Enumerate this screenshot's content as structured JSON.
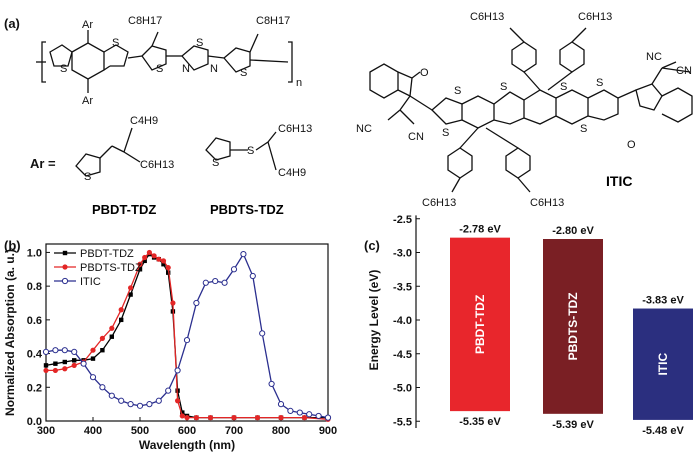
{
  "panels": {
    "a": "(a)",
    "b": "(b)",
    "c": "(c)"
  },
  "chemistry": {
    "polymer_labels": [
      "PBDT-TDZ",
      "PBDTS-TDZ"
    ],
    "acceptor_label": "ITIC",
    "substituents": {
      "ar_prefix": "Ar =",
      "ar": "Ar",
      "n": "n",
      "c8h17": "C8H17",
      "c6h13": "C6H13",
      "c4h9": "C4H9",
      "s": "S",
      "n_atom": "N",
      "o": "O",
      "nc": "NC",
      "cn": "CN"
    }
  },
  "chart_data": [
    {
      "type": "line",
      "xlabel": "Wavelength (nm)",
      "ylabel": "Normalized Absorption (a. u.)",
      "xlim": [
        300,
        900
      ],
      "ylim": [
        0.0,
        1.05
      ],
      "xticks": [
        300,
        400,
        500,
        600,
        700,
        800,
        900
      ],
      "yticks": [
        0.0,
        0.2,
        0.4,
        0.6,
        0.8,
        1.0
      ],
      "legend": "top-left",
      "series": [
        {
          "name": "PBDT-TDZ",
          "color": "#000000",
          "marker": "square",
          "x": [
            300,
            320,
            340,
            360,
            380,
            400,
            420,
            440,
            460,
            480,
            500,
            510,
            520,
            530,
            540,
            550,
            560,
            570,
            580,
            590,
            600,
            620,
            650,
            700,
            750,
            800,
            850,
            900
          ],
          "y": [
            0.33,
            0.34,
            0.35,
            0.36,
            0.36,
            0.37,
            0.42,
            0.5,
            0.6,
            0.75,
            0.9,
            0.95,
            0.99,
            0.97,
            0.96,
            0.93,
            0.88,
            0.65,
            0.18,
            0.05,
            0.03,
            0.02,
            0.02,
            0.02,
            0.02,
            0.02,
            0.02,
            0.02
          ]
        },
        {
          "name": "PBDTS-TDZ",
          "color": "#e32626",
          "marker": "circle",
          "x": [
            300,
            320,
            340,
            360,
            380,
            400,
            420,
            440,
            460,
            480,
            500,
            510,
            520,
            530,
            540,
            550,
            560,
            570,
            580,
            590,
            600,
            620,
            650,
            700,
            750,
            800,
            850,
            900
          ],
          "y": [
            0.3,
            0.3,
            0.31,
            0.33,
            0.35,
            0.42,
            0.49,
            0.55,
            0.66,
            0.79,
            0.93,
            0.97,
            1.0,
            0.98,
            0.96,
            0.95,
            0.91,
            0.7,
            0.12,
            0.03,
            0.02,
            0.02,
            0.02,
            0.02,
            0.02,
            0.02,
            0.02,
            0.01
          ]
        },
        {
          "name": "ITIC",
          "color": "#2b2f8f",
          "marker": "open-circle",
          "x": [
            300,
            320,
            340,
            360,
            380,
            400,
            420,
            440,
            460,
            480,
            500,
            520,
            540,
            560,
            580,
            600,
            620,
            640,
            660,
            680,
            700,
            720,
            740,
            760,
            780,
            800,
            820,
            840,
            860,
            880,
            900
          ],
          "y": [
            0.41,
            0.42,
            0.42,
            0.41,
            0.34,
            0.26,
            0.2,
            0.15,
            0.12,
            0.1,
            0.09,
            0.1,
            0.12,
            0.18,
            0.3,
            0.48,
            0.7,
            0.82,
            0.83,
            0.82,
            0.9,
            0.99,
            0.86,
            0.52,
            0.22,
            0.1,
            0.06,
            0.05,
            0.04,
            0.03,
            0.02
          ]
        }
      ]
    },
    {
      "type": "bar",
      "ylabel": "Energy Level (eV)",
      "ylim": [
        -5.6,
        -2.4
      ],
      "yticks": [
        -2.5,
        -3.0,
        -3.5,
        -4.0,
        -4.5,
        -5.0,
        -5.5
      ],
      "yticklabels": [
        "-2.5",
        "-3.0",
        "-3.5",
        "-4.0",
        "-4.5",
        "-5.0",
        "-5.5"
      ],
      "categories": [
        "PBDT-TDZ",
        "PBDTS-TDZ",
        "ITIC"
      ],
      "lumo": [
        -2.78,
        -2.8,
        -3.83
      ],
      "homo": [
        -5.35,
        -5.39,
        -5.48
      ],
      "lumo_labels": [
        "-2.78 eV",
        "-2.80 eV",
        "-3.83 eV"
      ],
      "homo_labels": [
        "-5.35 eV",
        "-5.39 eV",
        "-5.48 eV"
      ],
      "colors": [
        "#e8262c",
        "#7a1f24",
        "#2b2f7f"
      ]
    }
  ]
}
